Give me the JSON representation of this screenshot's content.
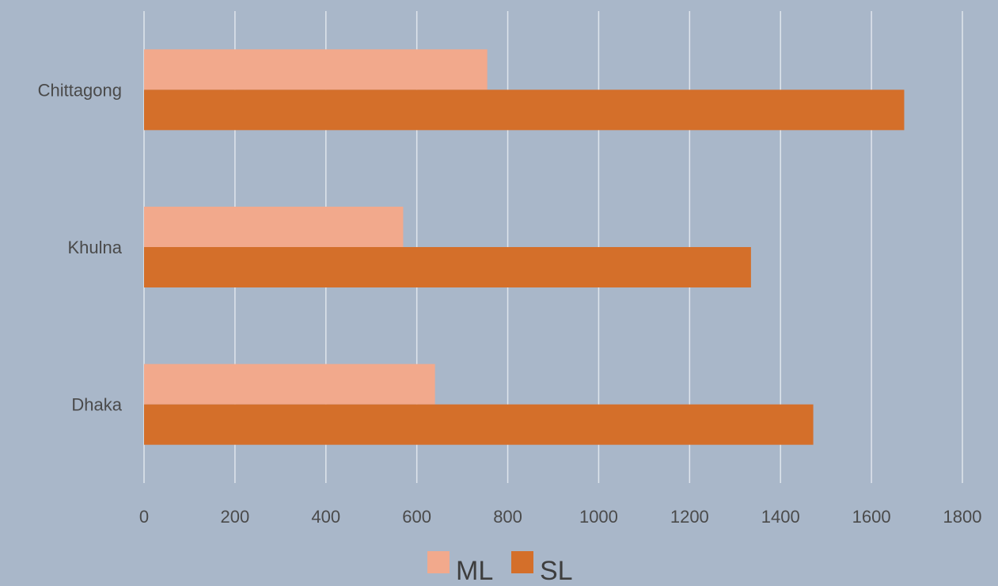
{
  "chart_data": {
    "type": "bar",
    "orientation": "horizontal",
    "categories": [
      "Dhaka",
      "Khulna",
      "Chittagong"
    ],
    "series": [
      {
        "name": "ML",
        "color": "#f2a98c",
        "values": [
          640,
          570,
          755
        ]
      },
      {
        "name": "SL",
        "color": "#d46f2a",
        "values": [
          1472,
          1335,
          1672
        ]
      }
    ],
    "xlim": [
      0,
      1800
    ],
    "xticks": [
      "0",
      "200",
      "400",
      "600",
      "800",
      "1000",
      "1200",
      "1400",
      "1600",
      "1800"
    ],
    "grid": true,
    "legend": "bottom",
    "title": "",
    "xlabel": "",
    "ylabel": ""
  },
  "colors": {
    "background": "#a9b7c9",
    "grid": "#dfe5ec",
    "text": "#4a4a4a"
  }
}
